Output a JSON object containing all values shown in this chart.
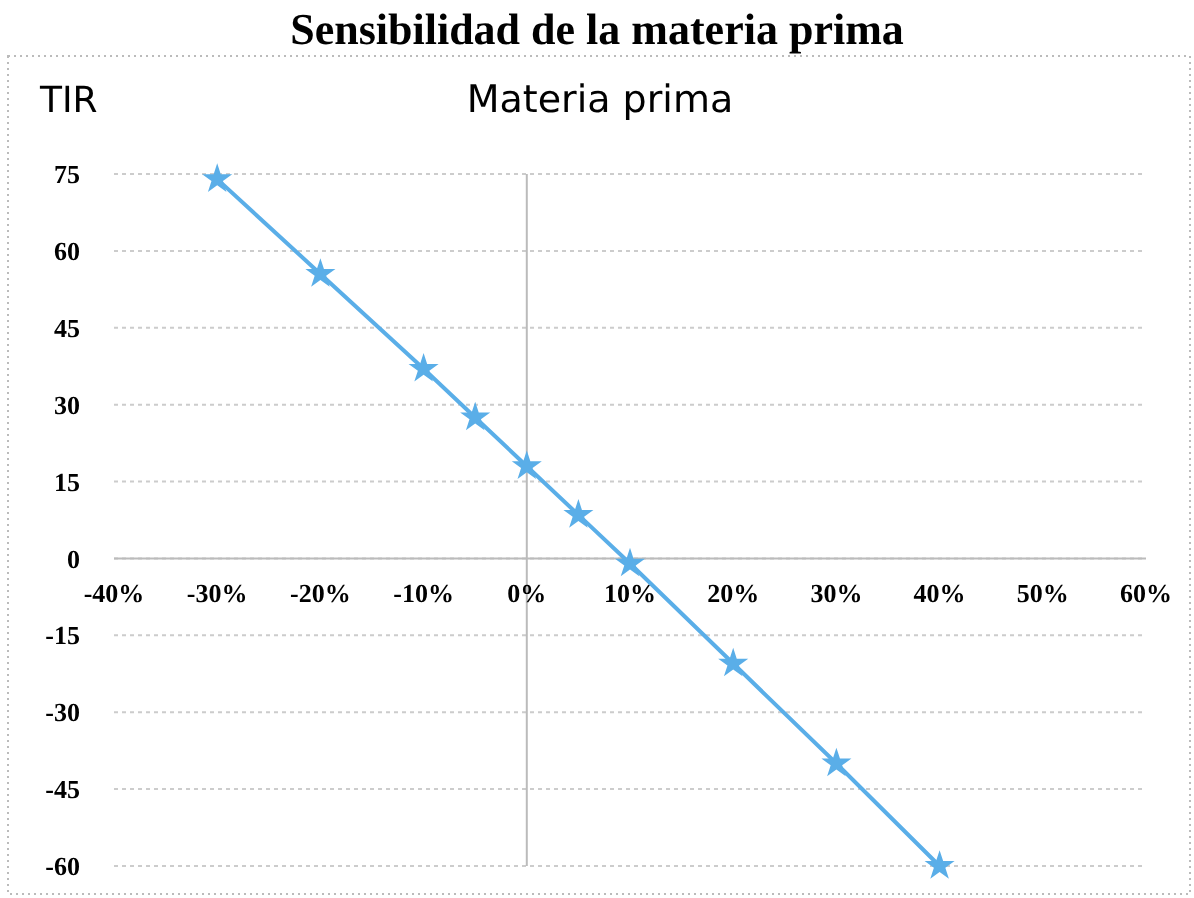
{
  "chart_data": {
    "type": "line",
    "title": "Sensibilidad de la materia prima",
    "subtitle": "Materia prima",
    "ylabel": "TIR",
    "x": [
      -30,
      -20,
      -10,
      -5,
      0,
      5,
      10,
      20,
      30,
      40
    ],
    "series": [
      {
        "color": "#5aaee8",
        "values": [
          74,
          55.5,
          37,
          27.5,
          18,
          8.5,
          -1,
          -20.5,
          -40,
          -60
        ]
      }
    ],
    "xlim": [
      -40,
      60
    ],
    "xticks": [
      {
        "value": -40,
        "label": "-40%"
      },
      {
        "value": -30,
        "label": "-30%"
      },
      {
        "value": -20,
        "label": "-20%"
      },
      {
        "value": -10,
        "label": "-10%"
      },
      {
        "value": 0,
        "label": "0%"
      },
      {
        "value": 10,
        "label": "10%"
      },
      {
        "value": 20,
        "label": "20%"
      },
      {
        "value": 30,
        "label": "30%"
      },
      {
        "value": 40,
        "label": "40%"
      },
      {
        "value": 50,
        "label": "50%"
      },
      {
        "value": 60,
        "label": "60%"
      }
    ],
    "ylim": [
      -60,
      75
    ],
    "yticks": [
      -60,
      -45,
      -30,
      -15,
      0,
      15,
      30,
      45,
      60,
      75
    ],
    "grid": "y",
    "marker": "star",
    "line_style": "solid"
  }
}
